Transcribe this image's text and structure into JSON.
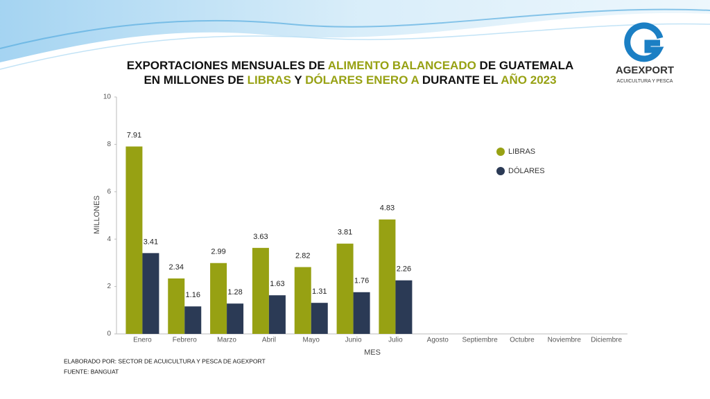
{
  "chart_data": {
    "type": "bar",
    "title_lines": [
      [
        {
          "text": "EXPORTACIONES MENSUALES DE ",
          "highlight": false
        },
        {
          "text": "ALIMENTO BALANCEADO",
          "highlight": true
        },
        {
          "text": " DE GUATEMALA",
          "highlight": false
        }
      ],
      [
        {
          "text": "EN MILLONES DE ",
          "highlight": false
        },
        {
          "text": "LIBRAS",
          "highlight": true
        },
        {
          "text": " Y ",
          "highlight": false
        },
        {
          "text": "DÓLARES ENERO A",
          "highlight": true
        },
        {
          "text": " DURANTE EL ",
          "highlight": false
        },
        {
          "text": "AÑO 2023",
          "highlight": true
        }
      ]
    ],
    "highlight_color": "#97a113",
    "categories": [
      "Enero",
      "Febrero",
      "Marzo",
      "Abril",
      "Mayo",
      "Junio",
      "Julio",
      "Agosto",
      "Septiembre",
      "Octubre",
      "Noviembre",
      "Diciembre"
    ],
    "series": [
      {
        "name": "LIBRAS",
        "color": "#97a113",
        "values": [
          7.91,
          2.34,
          2.99,
          3.63,
          2.82,
          3.81,
          4.83,
          null,
          null,
          null,
          null,
          null
        ]
      },
      {
        "name": "DÓLARES",
        "color": "#2b3a55",
        "values": [
          3.41,
          1.16,
          1.28,
          1.63,
          1.31,
          1.76,
          2.26,
          null,
          null,
          null,
          null,
          null
        ]
      }
    ],
    "ylim": [
      0,
      10
    ],
    "yticks": [
      0,
      2,
      4,
      6,
      8,
      10
    ],
    "ylabel": "MILLONES",
    "xlabel": "MES",
    "legend": "upper right",
    "grid": false,
    "footnotes": [
      "ELABORADO POR: SECTOR DE ACUICULTURA Y PESCA DE AGEXPORT",
      "FUENTE:  BANGUAT"
    ],
    "logo": {
      "name": "AGEXPORT",
      "subtitle": "ACUICULTURA Y PESCA"
    }
  }
}
